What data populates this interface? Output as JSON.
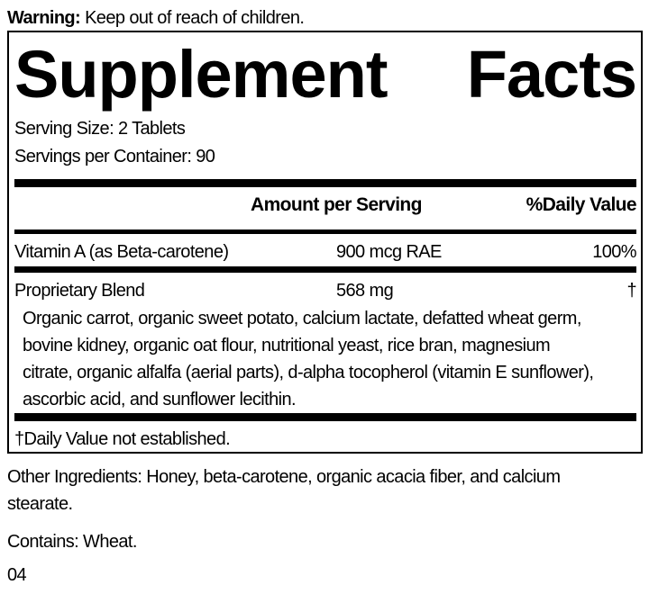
{
  "warning": {
    "label": "Warning:",
    "text": " Keep out of reach of children."
  },
  "title": {
    "word1": "Supplement",
    "word2": "Facts"
  },
  "serving_size": "Serving Size: 2 Tablets",
  "servings_per_container": "Servings per Container: 90",
  "headers": {
    "amount": "Amount per Serving",
    "dv": "%Daily Value"
  },
  "rows": [
    {
      "name": "Vitamin A (as Beta-carotene)",
      "amount": "900 mcg RAE",
      "dv": "100%"
    },
    {
      "name": "Proprietary Blend",
      "amount": "568 mg",
      "dv": "†"
    }
  ],
  "blend_lines": [
    "Organic carrot, organic sweet potato, calcium lactate, defatted wheat germ,",
    "bovine kidney, organic oat flour, nutritional yeast, rice bran, magnesium",
    "citrate, organic alfalfa (aerial parts), d-alpha tocopherol (vitamin E sunflower),",
    "ascorbic acid, and sunflower lecithin."
  ],
  "footnote": "†Daily Value not established.",
  "other_ingredients": [
    "Other Ingredients: Honey, beta-carotene, organic acacia fiber, and calcium",
    "stearate."
  ],
  "contains": "Contains: Wheat.",
  "code": "04"
}
